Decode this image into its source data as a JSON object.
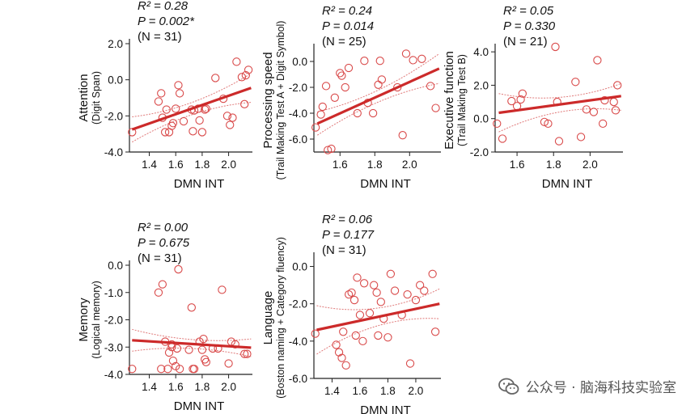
{
  "figure": {
    "xlabel": "DMN INT",
    "line_color": "#cc2a2a",
    "ci_color": "#e07a7a",
    "point_color": "#d94a4a",
    "axis_color": "#222222"
  },
  "chart_data": [
    {
      "type": "scatter",
      "id": "attention",
      "stats": [
        "R² = 0.28",
        "P = 0.002*",
        "(N = 31)"
      ],
      "ylabel_lines": [
        "Attention",
        "(Digit Span)"
      ],
      "xlabel": "DMN INT",
      "xlim": [
        1.25,
        2.18
      ],
      "ylim": [
        -4.0,
        2.0
      ],
      "xticks": [
        1.4,
        1.6,
        1.8,
        2.0
      ],
      "xtick_labels": [
        "1.4",
        "1.6",
        "1.8",
        "2.0"
      ],
      "yticks": [
        -4.0,
        -2.0,
        0.0,
        2.0
      ],
      "ytick_labels": [
        "-4.0",
        "-2.0",
        "0.0",
        "2.0"
      ],
      "fit": [
        -2.75,
        -0.45
      ],
      "ci_upper": [
        -2.05,
        0.35
      ],
      "ci_lower": [
        -3.45,
        -1.25
      ],
      "points": [
        [
          1.27,
          -2.9
        ],
        [
          1.47,
          -1.2
        ],
        [
          1.49,
          -0.75
        ],
        [
          1.5,
          -2.1
        ],
        [
          1.52,
          -2.9
        ],
        [
          1.53,
          -1.65
        ],
        [
          1.55,
          -2.9
        ],
        [
          1.57,
          -2.55
        ],
        [
          1.6,
          -1.6
        ],
        [
          1.62,
          -0.3
        ],
        [
          1.63,
          -0.75
        ],
        [
          1.66,
          -2.3
        ],
        [
          1.72,
          -1.65
        ],
        [
          1.73,
          -2.85
        ],
        [
          1.74,
          -1.7
        ],
        [
          1.77,
          -1.6
        ],
        [
          1.78,
          -2.25
        ],
        [
          1.8,
          -2.9
        ],
        [
          1.82,
          -1.65
        ],
        [
          1.83,
          -1.6
        ],
        [
          1.9,
          0.1
        ],
        [
          1.96,
          -1.05
        ],
        [
          1.99,
          -2.0
        ],
        [
          2.01,
          -2.5
        ],
        [
          2.03,
          -2.1
        ],
        [
          2.06,
          1.0
        ],
        [
          2.1,
          0.15
        ],
        [
          2.13,
          0.25
        ],
        [
          2.15,
          0.55
        ],
        [
          2.12,
          -1.35
        ],
        [
          1.58,
          -2.4
        ]
      ]
    },
    {
      "type": "scatter",
      "id": "processing-speed",
      "stats": [
        "R² = 0.24",
        "P = 0.014",
        "(N = 25)"
      ],
      "ylabel_lines": [
        "Processing speed",
        "(Trail Making Test A + Digit Symbol)"
      ],
      "xlabel": "DMN INT",
      "xlim": [
        1.45,
        2.18
      ],
      "ylim": [
        -7.0,
        1.0
      ],
      "xticks": [
        1.6,
        1.8,
        2.0
      ],
      "xtick_labels": [
        "1.6",
        "1.8",
        "2.0"
      ],
      "yticks": [
        -6.0,
        -4.0,
        -2.0,
        0.0
      ],
      "ytick_labels": [
        "-6.0",
        "-4.0",
        "-2.0",
        "0.0"
      ],
      "fit": [
        -4.8,
        -0.55
      ],
      "ci_upper": [
        -3.9,
        0.6
      ],
      "ci_lower": [
        -5.7,
        -1.7
      ],
      "points": [
        [
          1.46,
          -5.1
        ],
        [
          1.49,
          -4.1
        ],
        [
          1.5,
          -3.5
        ],
        [
          1.52,
          -1.9
        ],
        [
          1.53,
          -6.85
        ],
        [
          1.55,
          -6.75
        ],
        [
          1.57,
          -2.8
        ],
        [
          1.6,
          -0.9
        ],
        [
          1.61,
          -1.1
        ],
        [
          1.63,
          -2.0
        ],
        [
          1.65,
          -0.5
        ],
        [
          1.7,
          -4.0
        ],
        [
          1.74,
          0.05
        ],
        [
          1.76,
          -3.2
        ],
        [
          1.79,
          -4.0
        ],
        [
          1.82,
          -1.8
        ],
        [
          1.83,
          0.05
        ],
        [
          1.84,
          -1.4
        ],
        [
          1.93,
          -2.0
        ],
        [
          1.96,
          -5.7
        ],
        [
          1.98,
          0.6
        ],
        [
          2.02,
          0.1
        ],
        [
          2.07,
          0.2
        ],
        [
          2.12,
          -1.9
        ],
        [
          2.15,
          -3.6
        ]
      ]
    },
    {
      "type": "scatter",
      "id": "executive-function",
      "stats": [
        "R² = 0.05",
        "P = 0.330",
        "(N = 21)"
      ],
      "ylabel_lines": [
        "Executive function",
        "(Trail Making Test B)"
      ],
      "xlabel": "DMN INT",
      "xlim": [
        1.48,
        2.18
      ],
      "ylim": [
        -2.0,
        4.2
      ],
      "xticks": [
        1.6,
        1.8,
        2.0
      ],
      "xtick_labels": [
        "1.6",
        "1.8",
        "2.0"
      ],
      "yticks": [
        -2.0,
        0.0,
        2.0,
        4.0
      ],
      "ytick_labels": [
        "-2.0",
        "0.0",
        "2.0",
        "4.0"
      ],
      "fit": [
        0.35,
        1.35
      ],
      "ci_upper": [
        1.5,
        2.1
      ],
      "ci_lower": [
        -0.8,
        0.5
      ],
      "points": [
        [
          1.49,
          -0.3
        ],
        [
          1.52,
          -1.2
        ],
        [
          1.57,
          1.05
        ],
        [
          1.6,
          0.75
        ],
        [
          1.62,
          1.15
        ],
        [
          1.63,
          1.5
        ],
        [
          1.75,
          -0.2
        ],
        [
          1.77,
          -0.3
        ],
        [
          1.81,
          4.3
        ],
        [
          1.82,
          1.0
        ],
        [
          1.83,
          -1.35
        ],
        [
          1.92,
          2.2
        ],
        [
          1.95,
          -1.1
        ],
        [
          1.98,
          0.55
        ],
        [
          2.02,
          0.4
        ],
        [
          2.04,
          3.5
        ],
        [
          2.07,
          -0.3
        ],
        [
          2.08,
          1.1
        ],
        [
          2.13,
          1.0
        ],
        [
          2.14,
          0.5
        ],
        [
          2.15,
          2.0
        ]
      ]
    },
    {
      "type": "scatter",
      "id": "memory",
      "stats": [
        "R² = 0.00",
        "P = 0.675",
        "(N = 31)"
      ],
      "ylabel_lines": [
        "Memory",
        "(Logical memory)"
      ],
      "xlabel": "DMN INT",
      "xlim": [
        1.25,
        2.18
      ],
      "ylim": [
        -4.0,
        0.0
      ],
      "xticks": [
        1.4,
        1.6,
        1.8,
        2.0
      ],
      "xtick_labels": [
        "1.4",
        "1.6",
        "1.8",
        "2.0"
      ],
      "yticks": [
        -4.0,
        -3.0,
        -2.0,
        -1.0,
        0.0
      ],
      "ytick_labels": [
        "-4.0",
        "-3.0",
        "-2.0",
        "-1.0",
        "0.0"
      ],
      "fit": [
        -2.75,
        -3.02
      ],
      "ci_upper": [
        -2.35,
        -2.7
      ],
      "ci_lower": [
        -3.15,
        -3.35
      ],
      "points": [
        [
          1.27,
          -3.8
        ],
        [
          1.47,
          -1.0
        ],
        [
          1.5,
          -0.7
        ],
        [
          1.49,
          -3.8
        ],
        [
          1.52,
          -2.8
        ],
        [
          1.54,
          -3.8
        ],
        [
          1.55,
          -3.2
        ],
        [
          1.57,
          -2.9
        ],
        [
          1.57,
          -3.0
        ],
        [
          1.58,
          -3.5
        ],
        [
          1.6,
          -3.7
        ],
        [
          1.61,
          -3.05
        ],
        [
          1.62,
          -0.15
        ],
        [
          1.63,
          -3.8
        ],
        [
          1.7,
          -3.1
        ],
        [
          1.72,
          -1.55
        ],
        [
          1.73,
          -3.8
        ],
        [
          1.74,
          -3.8
        ],
        [
          1.78,
          -2.8
        ],
        [
          1.8,
          -3.1
        ],
        [
          1.81,
          -2.7
        ],
        [
          1.82,
          -3.45
        ],
        [
          1.83,
          -3.55
        ],
        [
          1.88,
          -3.05
        ],
        [
          1.92,
          -3.05
        ],
        [
          1.95,
          -0.9
        ],
        [
          2.0,
          -3.6
        ],
        [
          2.02,
          -2.8
        ],
        [
          2.05,
          -2.9
        ],
        [
          2.12,
          -3.25
        ],
        [
          2.14,
          -3.25
        ]
      ]
    },
    {
      "type": "scatter",
      "id": "language",
      "stats": [
        "R² = 0.06",
        "P = 0.177",
        "(N = 31)"
      ],
      "ylabel_lines": [
        "Language",
        "(Boston naming + Category fluency)"
      ],
      "xlabel": "DMN INT",
      "xlim": [
        1.27,
        2.18
      ],
      "ylim": [
        -6.0,
        0.5
      ],
      "xticks": [
        1.4,
        1.6,
        1.8,
        2.0
      ],
      "xtick_labels": [
        "1.4",
        "1.6",
        "1.8",
        "2.0"
      ],
      "yticks": [
        -6.0,
        -4.0,
        -2.0,
        0.0
      ],
      "ytick_labels": [
        "-6.0",
        "-4.0",
        "-2.0",
        "0.0"
      ],
      "fit": [
        -3.4,
        -2.0
      ],
      "ci_upper": [
        -2.1,
        -1.2
      ],
      "ci_lower": [
        -4.7,
        -2.8
      ],
      "points": [
        [
          1.28,
          -3.6
        ],
        [
          1.43,
          -4.2
        ],
        [
          1.45,
          -4.6
        ],
        [
          1.47,
          -4.9
        ],
        [
          1.48,
          -3.5
        ],
        [
          1.5,
          -5.3
        ],
        [
          1.52,
          -1.5
        ],
        [
          1.54,
          -1.4
        ],
        [
          1.56,
          -1.8
        ],
        [
          1.57,
          -3.7
        ],
        [
          1.58,
          -0.6
        ],
        [
          1.6,
          -2.6
        ],
        [
          1.62,
          -4.0
        ],
        [
          1.63,
          -0.9
        ],
        [
          1.67,
          -2.5
        ],
        [
          1.7,
          -1.0
        ],
        [
          1.72,
          -1.4
        ],
        [
          1.73,
          -3.7
        ],
        [
          1.75,
          -1.9
        ],
        [
          1.77,
          -2.8
        ],
        [
          1.8,
          -3.8
        ],
        [
          1.82,
          -0.4
        ],
        [
          1.85,
          -1.3
        ],
        [
          1.9,
          -2.6
        ],
        [
          1.94,
          -1.5
        ],
        [
          1.96,
          -5.2
        ],
        [
          2.0,
          -1.8
        ],
        [
          2.03,
          -1.0
        ],
        [
          2.06,
          -1.3
        ],
        [
          2.12,
          -0.4
        ],
        [
          2.14,
          -3.5
        ]
      ]
    }
  ],
  "watermark": {
    "text": "公众号 · 脑海科技实验室",
    "icon": "wechat-icon"
  }
}
